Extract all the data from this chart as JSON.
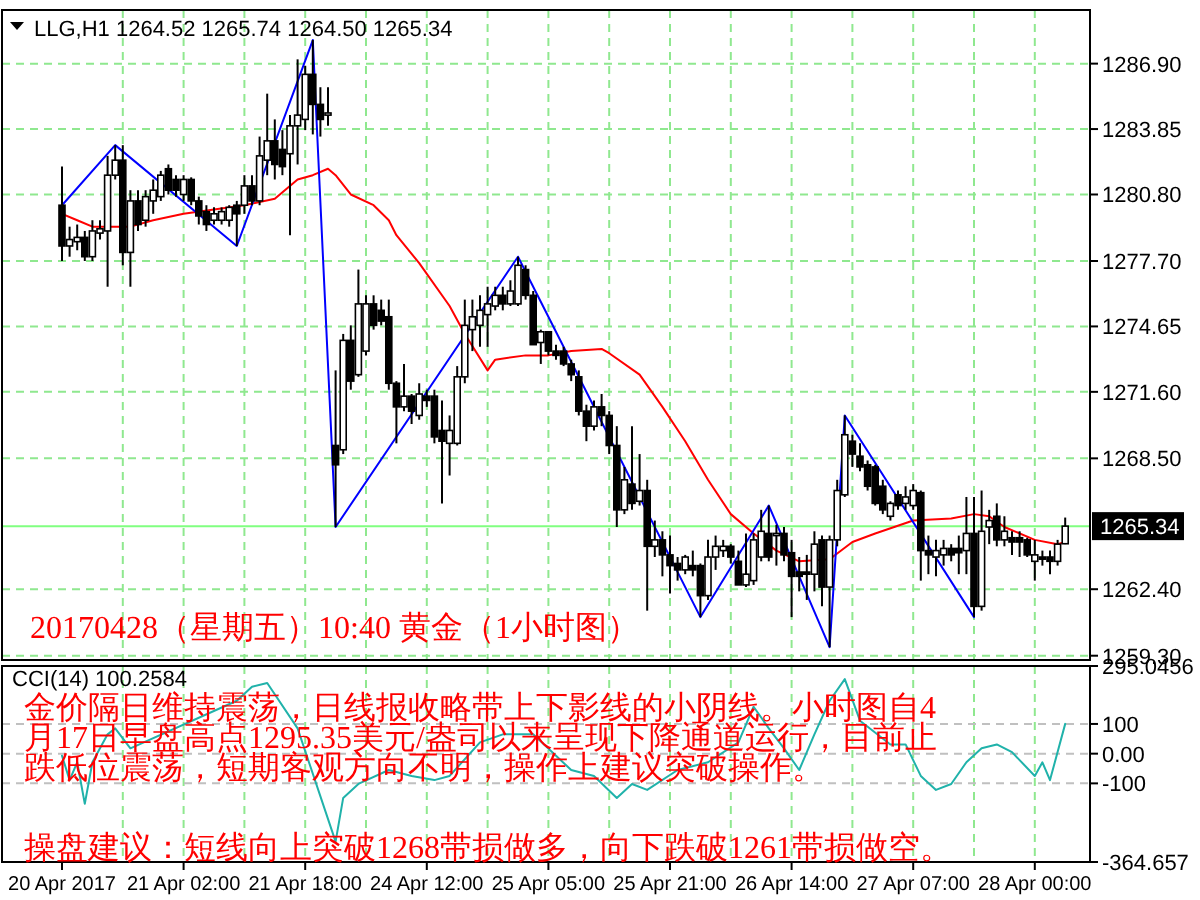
{
  "chart_data": [
    {
      "type": "candlestick",
      "title": "LLG,H1  1264.52 1265.74 1264.50 1265.34",
      "ohlc": [
        [
          1280.3,
          1282.1,
          1277.7,
          1278.4
        ],
        [
          1278.4,
          1279.3,
          1277.9,
          1278.7
        ],
        [
          1278.6,
          1279.4,
          1278.2,
          1278.8
        ],
        [
          1278.8,
          1279.1,
          1277.7,
          1277.9
        ],
        [
          1277.9,
          1279.6,
          1277.7,
          1279.1
        ],
        [
          1279.0,
          1279.6,
          1278.7,
          1279.2
        ],
        [
          1279.1,
          1282.6,
          1276.5,
          1281.7
        ],
        [
          1281.7,
          1283.1,
          1281.5,
          1282.4
        ],
        [
          1282.4,
          1283.1,
          1277.5,
          1278.1
        ],
        [
          1278.1,
          1281.0,
          1276.5,
          1280.5
        ],
        [
          1280.5,
          1281.0,
          1279.1,
          1279.4
        ],
        [
          1279.6,
          1281.0,
          1279.3,
          1280.7
        ],
        [
          1280.5,
          1281.5,
          1279.9,
          1281.0
        ],
        [
          1280.7,
          1281.9,
          1280.5,
          1281.7
        ],
        [
          1282.0,
          1282.2,
          1280.8,
          1281.0
        ],
        [
          1281.5,
          1281.7,
          1280.7,
          1281.0
        ],
        [
          1280.8,
          1281.7,
          1280.5,
          1281.5
        ],
        [
          1281.5,
          1281.6,
          1280.3,
          1280.5
        ],
        [
          1280.5,
          1280.7,
          1279.4,
          1279.8
        ],
        [
          1280.0,
          1280.3,
          1279.1,
          1279.4
        ],
        [
          1279.6,
          1280.2,
          1279.4,
          1279.9
        ],
        [
          1279.6,
          1280.2,
          1279.4,
          1280.0
        ],
        [
          1279.6,
          1280.3,
          1279.3,
          1280.2
        ],
        [
          1280.3,
          1280.5,
          1278.4,
          1279.9
        ],
        [
          1280.3,
          1281.7,
          1279.9,
          1281.2
        ],
        [
          1281.2,
          1281.7,
          1280.3,
          1280.5
        ],
        [
          1280.5,
          1283.5,
          1280.3,
          1282.6
        ],
        [
          1282.4,
          1285.5,
          1281.7,
          1283.3
        ],
        [
          1283.3,
          1284.3,
          1281.5,
          1282.2
        ],
        [
          1282.9,
          1283.8,
          1281.7,
          1282.1
        ],
        [
          1282.7,
          1284.5,
          1278.9,
          1284.0
        ],
        [
          1284.0,
          1287.1,
          1282.2,
          1284.5
        ],
        [
          1284.3,
          1286.8,
          1283.8,
          1286.4
        ],
        [
          1286.4,
          1288.0,
          1283.6,
          1285.0
        ],
        [
          1285.0,
          1285.8,
          1283.5,
          1284.3
        ],
        [
          1284.5,
          1285.8,
          1284.0,
          1284.6
        ],
        [
          1269.1,
          1272.6,
          1265.3,
          1268.2
        ],
        [
          1268.9,
          1274.3,
          1268.7,
          1274.0
        ],
        [
          1274.0,
          1274.7,
          1271.7,
          1272.1
        ],
        [
          1272.4,
          1277.3,
          1272.3,
          1275.7
        ],
        [
          1273.5,
          1276.1,
          1273.3,
          1275.7
        ],
        [
          1275.7,
          1276.1,
          1274.5,
          1274.7
        ],
        [
          1275.4,
          1275.9,
          1274.7,
          1274.9
        ],
        [
          1275.1,
          1275.9,
          1271.7,
          1272.0
        ],
        [
          1272.0,
          1272.1,
          1269.2,
          1270.9
        ],
        [
          1270.9,
          1272.9,
          1270.7,
          1271.4
        ],
        [
          1271.4,
          1271.5,
          1270.1,
          1270.7
        ],
        [
          1270.5,
          1272.0,
          1270.3,
          1271.5
        ],
        [
          1271.4,
          1271.7,
          1270.9,
          1271.2
        ],
        [
          1271.4,
          1271.7,
          1269.2,
          1269.5
        ],
        [
          1269.8,
          1271.2,
          1266.4,
          1269.3
        ],
        [
          1269.2,
          1270.5,
          1267.7,
          1269.8
        ],
        [
          1269.2,
          1272.8,
          1269.1,
          1272.3
        ],
        [
          1272.3,
          1275.9,
          1272.0,
          1274.7
        ],
        [
          1274.5,
          1275.9,
          1273.5,
          1275.1
        ],
        [
          1274.7,
          1276.1,
          1273.7,
          1275.4
        ],
        [
          1275.2,
          1276.5,
          1273.7,
          1275.7
        ],
        [
          1275.6,
          1276.5,
          1275.4,
          1276.1
        ],
        [
          1276.1,
          1276.5,
          1275.4,
          1275.7
        ],
        [
          1275.7,
          1276.8,
          1275.6,
          1276.3
        ],
        [
          1275.7,
          1277.9,
          1275.6,
          1277.5
        ],
        [
          1277.3,
          1277.5,
          1275.9,
          1276.1
        ],
        [
          1276.1,
          1276.3,
          1273.8,
          1273.8
        ],
        [
          1273.9,
          1274.5,
          1272.9,
          1274.4
        ],
        [
          1274.4,
          1274.4,
          1273.3,
          1273.5
        ],
        [
          1273.5,
          1273.8,
          1273.1,
          1273.3
        ],
        [
          1273.5,
          1273.7,
          1272.8,
          1272.9
        ],
        [
          1272.9,
          1273.1,
          1272.1,
          1272.4
        ],
        [
          1272.3,
          1272.6,
          1270.5,
          1270.7
        ],
        [
          1270.7,
          1271.0,
          1269.3,
          1270.0
        ],
        [
          1270.0,
          1271.2,
          1269.8,
          1270.9
        ],
        [
          1270.9,
          1271.5,
          1270.0,
          1270.5
        ],
        [
          1270.5,
          1270.7,
          1268.7,
          1269.1
        ],
        [
          1269.1,
          1270.0,
          1265.3,
          1266.1
        ],
        [
          1266.1,
          1268.1,
          1265.9,
          1267.5
        ],
        [
          1267.3,
          1270.0,
          1266.1,
          1266.4
        ],
        [
          1266.5,
          1268.7,
          1266.3,
          1267.0
        ],
        [
          1267.0,
          1267.5,
          1261.4,
          1264.4
        ],
        [
          1264.4,
          1265.6,
          1263.9,
          1264.7
        ],
        [
          1264.7,
          1265.1,
          1263.0,
          1264.0
        ],
        [
          1264.0,
          1264.9,
          1262.2,
          1263.5
        ],
        [
          1263.6,
          1263.9,
          1262.8,
          1263.3
        ],
        [
          1263.3,
          1264.0,
          1263.1,
          1263.9
        ],
        [
          1263.5,
          1264.2,
          1263.0,
          1263.3
        ],
        [
          1263.5,
          1263.6,
          1261.1,
          1262.1
        ],
        [
          1262.1,
          1264.7,
          1261.9,
          1263.9
        ],
        [
          1263.9,
          1264.9,
          1263.3,
          1264.4
        ],
        [
          1264.2,
          1264.7,
          1263.9,
          1264.4
        ],
        [
          1264.4,
          1264.5,
          1263.6,
          1263.9
        ],
        [
          1263.7,
          1264.2,
          1262.6,
          1262.6
        ],
        [
          1262.6,
          1265.0,
          1262.5,
          1263.1
        ],
        [
          1262.8,
          1265.0,
          1262.6,
          1264.7
        ],
        [
          1263.9,
          1266.1,
          1263.7,
          1265.1
        ],
        [
          1265.0,
          1266.3,
          1263.7,
          1263.9
        ],
        [
          1264.9,
          1265.4,
          1263.5,
          1265.0
        ],
        [
          1265.0,
          1265.3,
          1263.7,
          1264.0
        ],
        [
          1264.1,
          1264.7,
          1261.1,
          1263.0
        ],
        [
          1263.2,
          1263.9,
          1262.3,
          1263.0
        ],
        [
          1263.2,
          1264.0,
          1261.9,
          1263.1
        ],
        [
          1263.1,
          1265.1,
          1262.3,
          1264.5
        ],
        [
          1264.7,
          1264.9,
          1261.6,
          1262.5
        ],
        [
          1262.5,
          1264.9,
          1259.7,
          1264.7
        ],
        [
          1264.7,
          1267.5,
          1264.4,
          1267.0
        ],
        [
          1266.8,
          1270.5,
          1266.7,
          1269.6
        ],
        [
          1269.3,
          1269.6,
          1268.1,
          1268.7
        ],
        [
          1268.6,
          1269.2,
          1267.9,
          1268.1
        ],
        [
          1268.2,
          1268.4,
          1267.0,
          1267.2
        ],
        [
          1268.1,
          1268.2,
          1266.3,
          1266.4
        ],
        [
          1267.2,
          1267.5,
          1265.9,
          1266.1
        ],
        [
          1265.8,
          1266.5,
          1265.6,
          1266.4
        ],
        [
          1266.8,
          1267.0,
          1266.1,
          1266.3
        ],
        [
          1266.4,
          1267.2,
          1266.1,
          1266.7
        ],
        [
          1266.3,
          1267.3,
          1266.1,
          1267.0
        ],
        [
          1266.9,
          1267.0,
          1262.8,
          1264.2
        ],
        [
          1264.2,
          1264.9,
          1263.1,
          1264.0
        ],
        [
          1263.9,
          1264.7,
          1263.0,
          1264.2
        ],
        [
          1264.0,
          1264.7,
          1263.5,
          1264.3
        ],
        [
          1264.3,
          1264.5,
          1263.7,
          1264.0
        ],
        [
          1264.3,
          1264.9,
          1263.1,
          1264.1
        ],
        [
          1264.2,
          1266.7,
          1263.1,
          1265.0
        ],
        [
          1265.0,
          1266.7,
          1261.1,
          1261.6
        ],
        [
          1261.6,
          1267.0,
          1261.4,
          1265.1
        ],
        [
          1265.3,
          1266.1,
          1264.5,
          1265.6
        ],
        [
          1265.8,
          1266.4,
          1264.4,
          1264.7
        ],
        [
          1264.7,
          1265.8,
          1264.4,
          1265.1
        ],
        [
          1264.8,
          1265.1,
          1264.0,
          1264.6
        ],
        [
          1264.8,
          1265.1,
          1263.9,
          1264.6
        ],
        [
          1264.7,
          1264.8,
          1263.9,
          1264.0
        ],
        [
          1263.7,
          1264.7,
          1262.8,
          1264.0
        ],
        [
          1263.9,
          1264.2,
          1263.5,
          1263.8
        ],
        [
          1263.9,
          1264.2,
          1263.1,
          1263.7
        ],
        [
          1263.7,
          1264.7,
          1263.5,
          1264.5
        ],
        [
          1264.52,
          1265.74,
          1264.5,
          1265.34
        ]
      ],
      "series": [
        {
          "type": "line",
          "color": "#ff0000",
          "values": [
            1279.9,
            null,
            1279.6,
            null,
            1279.3,
            null,
            null,
            null,
            null,
            1279.3,
            null,
            null,
            1279.6,
            null,
            null,
            null,
            1279.9,
            null,
            null,
            null,
            1280.1,
            null,
            null,
            null,
            1280.3,
            null,
            null,
            null,
            1280.6,
            null,
            null,
            1281.5,
            null,
            1281.7,
            null,
            1282.0,
            1281.7,
            null,
            1280.8,
            null,
            null,
            1280.3,
            null,
            1279.6,
            1278.9,
            null,
            null,
            1277.6,
            null,
            null,
            null,
            1275.6,
            null,
            1274.3,
            null,
            null,
            1272.6,
            1273.1,
            null,
            null,
            null,
            1273.3,
            null,
            null,
            1273.3,
            null,
            null,
            1273.5,
            null,
            null,
            null,
            1273.6,
            1273.4,
            null,
            null,
            null,
            1272.4,
            null,
            null,
            1270.9,
            null,
            null,
            1269.3,
            null,
            null,
            1267.5,
            null,
            null,
            1265.9,
            null,
            null,
            1265.0,
            null,
            null,
            1264.2,
            null,
            null,
            1263.7,
            null,
            null,
            null,
            1263.8,
            null,
            null,
            1264.6,
            null,
            null,
            1265.0,
            null,
            null,
            null,
            null,
            1265.6,
            null,
            null,
            null,
            null,
            1265.7,
            null,
            null,
            1265.9,
            null,
            1265.8,
            null,
            1265.3,
            null,
            null,
            null,
            1264.7,
            null,
            null,
            1264.5,
            1264.6
          ]
        },
        {
          "type": "line",
          "color": "#0000ff",
          "values": [
            1280.3,
            null,
            null,
            null,
            null,
            null,
            null,
            1283.1,
            null,
            null,
            null,
            null,
            null,
            null,
            null,
            null,
            null,
            null,
            null,
            null,
            null,
            null,
            null,
            1278.4,
            null,
            null,
            null,
            null,
            null,
            null,
            null,
            null,
            null,
            1288.0,
            null,
            null,
            1265.3,
            null,
            null,
            null,
            null,
            null,
            null,
            null,
            null,
            null,
            null,
            null,
            null,
            null,
            null,
            null,
            null,
            null,
            null,
            null,
            null,
            null,
            null,
            null,
            1277.9,
            null,
            null,
            null,
            null,
            null,
            null,
            null,
            null,
            null,
            null,
            null,
            null,
            null,
            null,
            null,
            null,
            null,
            null,
            null,
            null,
            null,
            null,
            null,
            1261.1,
            null,
            null,
            null,
            null,
            null,
            null,
            null,
            null,
            1266.3,
            null,
            null,
            null,
            null,
            null,
            null,
            null,
            1259.7,
            null,
            1270.5,
            null,
            null,
            null,
            null,
            null,
            null,
            null,
            null,
            null,
            null,
            null,
            null,
            null,
            null,
            null,
            null,
            1261.1,
            null,
            null,
            null,
            null,
            null,
            null,
            null,
            null,
            null,
            null,
            null,
            null
          ]
        }
      ],
      "ylim": [
        1259.1,
        1289.4
      ],
      "yticks": [
        {
          "value": 1259.3,
          "label": "1259.30"
        },
        {
          "value": 1262.4,
          "label": "1262.40"
        },
        {
          "value": 1268.5,
          "label": "1268.50"
        },
        {
          "value": 1271.6,
          "label": "1271.60"
        },
        {
          "value": 1274.65,
          "label": "1274.65"
        },
        {
          "value": 1277.7,
          "label": "1277.70"
        },
        {
          "value": 1280.8,
          "label": "1280.80"
        },
        {
          "value": 1283.85,
          "label": "1283.85"
        },
        {
          "value": 1286.9,
          "label": "1286.90"
        }
      ],
      "grid": true,
      "tick_labels": "y",
      "ref_lines": [
        {
          "axis": "y",
          "value": 1265.34,
          "label": "1265.34",
          "color": "#80ff80",
          "line_style": "solid"
        }
      ],
      "annotations": [
        "20170428（星期五）10:40 黄金（1小时图）"
      ]
    },
    {
      "type": "line",
      "title": "CCI(14) 100.2584",
      "categories": [
        "20 Apr 2017",
        null,
        null,
        null,
        null,
        null,
        null,
        null,
        null,
        null,
        null,
        null,
        null,
        null,
        null,
        null,
        "21 Apr 02:00",
        null,
        null,
        null,
        null,
        null,
        null,
        null,
        null,
        null,
        null,
        null,
        null,
        null,
        null,
        null,
        "21 Apr 18:00",
        null,
        null,
        null,
        null,
        null,
        null,
        null,
        null,
        null,
        null,
        null,
        null,
        null,
        null,
        null,
        "24 Apr 12:00",
        null,
        null,
        null,
        null,
        null,
        null,
        null,
        null,
        null,
        null,
        null,
        null,
        null,
        null,
        null,
        "25 Apr 05:00",
        null,
        null,
        null,
        null,
        null,
        null,
        null,
        null,
        null,
        null,
        null,
        null,
        null,
        null,
        null,
        "25 Apr 21:00",
        null,
        null,
        null,
        null,
        null,
        null,
        null,
        null,
        null,
        null,
        null,
        null,
        null,
        null,
        null,
        "26 Apr 14:00",
        null,
        null,
        null,
        null,
        null,
        null,
        null,
        null,
        null,
        null,
        null,
        null,
        null,
        null,
        null,
        "27 Apr 07:00",
        null,
        null,
        null,
        null,
        null,
        null,
        null,
        null,
        null,
        null,
        null,
        null,
        null,
        null,
        null,
        "28 Apr 00:00",
        null,
        null,
        null,
        null
      ],
      "series": [
        {
          "color": "#20b2aa",
          "values": [
            -7,
            -89,
            -29,
            -169,
            -29,
            null,
            65,
            85,
            null,
            18,
            null,
            null,
            null,
            null,
            null,
            null,
            null,
            null,
            null,
            null,
            null,
            null,
            null,
            178,
            null,
            225,
            null,
            238,
            null,
            null,
            null,
            85,
            null,
            null,
            null,
            null,
            -296,
            -149,
            null,
            -102,
            null,
            null,
            null,
            -55,
            null,
            null,
            -75,
            null,
            null,
            -89,
            null,
            -75,
            null,
            null,
            null,
            38,
            null,
            null,
            65,
            null,
            null,
            null,
            65,
            null,
            null,
            null,
            null,
            -55,
            null,
            null,
            -75,
            null,
            null,
            -149,
            null,
            -102,
            null,
            -122,
            null,
            null,
            null,
            -55,
            null,
            null,
            null,
            -29,
            null,
            null,
            null,
            38,
            null,
            158,
            null,
            85,
            null,
            18,
            null,
            -55,
            null,
            65,
            null,
            178,
            null,
            251,
            null,
            111,
            null,
            null,
            null,
            31,
            null,
            31,
            null,
            -75,
            null,
            -122,
            null,
            -102,
            null,
            -29,
            null,
            18,
            null,
            31,
            null,
            5,
            null,
            null,
            -75,
            -29,
            -89,
            null,
            100.2584
          ]
        }
      ],
      "ylim": [
        -364.657,
        295.0456
      ],
      "yticks": [
        {
          "value": -364.657,
          "label": "-364.657"
        },
        {
          "value": -100,
          "label": "-100"
        },
        {
          "value": 0,
          "label": "0.00"
        },
        {
          "value": 100,
          "label": "100"
        },
        {
          "value": 295.0456,
          "label": "295.0456"
        }
      ],
      "grid": "x",
      "ref_lines": [
        {
          "axis": "y",
          "value": 100,
          "color": "#c0c0c0",
          "line_style": "dashed"
        },
        {
          "axis": "y",
          "value": 0,
          "color": "#c0c0c0",
          "line_style": "dashed"
        },
        {
          "axis": "y",
          "value": -100,
          "color": "#c0c0c0",
          "line_style": "dashed"
        }
      ],
      "annotations": [
        "金价隔日维持震荡，日线报收略带上下影线的小阴线。小时图自4",
        "月17日早盘高点1295.35美元/盎司以来呈现下降通道运行，目前止",
        "跌低位震荡，短期客观方向不明，操作上建议突破操作。",
        "操盘建议：短线向上突破1268带损做多，向下跌破1261带损做空。"
      ]
    }
  ]
}
